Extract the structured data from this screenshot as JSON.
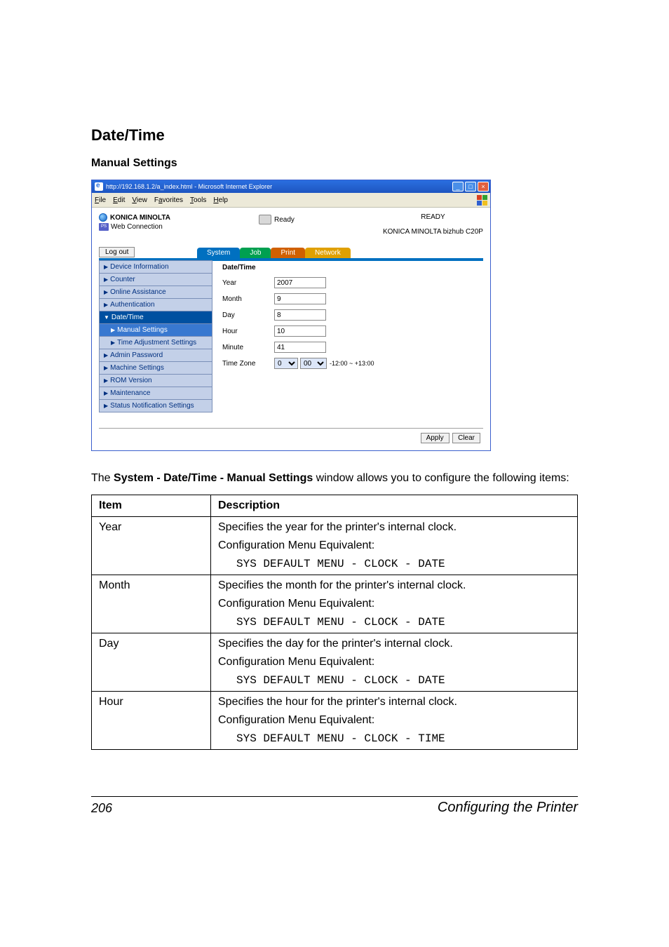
{
  "headings": {
    "section": "Date/Time",
    "sub": "Manual Settings"
  },
  "window": {
    "title": "http://192.168.1.2/a_index.html - Microsoft Internet Explorer",
    "menus": {
      "file": "File",
      "edit": "Edit",
      "view": "View",
      "favorites": "Favorites",
      "tools": "Tools",
      "help": "Help"
    },
    "logo_colors": [
      "#d84020",
      "#30a030",
      "#3060d0",
      "#f0c020"
    ],
    "brand_line1": "KONICA MINOLTA",
    "brand_line2": "Web Connection",
    "ps_badge": "PAGE SCOPE",
    "status": "Ready",
    "ready_label": "READY",
    "model": "KONICA MINOLTA bizhub C20P",
    "logout": "Log out",
    "tabs": {
      "system": "System",
      "job": "Job",
      "print": "Print",
      "network": "Network"
    },
    "menu": {
      "device_info": "Device Information",
      "counter": "Counter",
      "online_assist": "Online Assistance",
      "authentication": "Authentication",
      "date_time": "Date/Time",
      "manual": "Manual Settings",
      "time_adj": "Time Adjustment Settings",
      "admin_pw": "Admin Password",
      "machine": "Machine Settings",
      "rom": "ROM Version",
      "maint": "Maintenance",
      "status_notif": "Status Notification Settings"
    },
    "form": {
      "title": "Date/Time",
      "year_label": "Year",
      "year_val": "2007",
      "month_label": "Month",
      "month_val": "9",
      "day_label": "Day",
      "day_val": "8",
      "hour_label": "Hour",
      "hour_val": "10",
      "minute_label": "Minute",
      "minute_val": "41",
      "tz_label": "Time Zone",
      "tz_hours": "0",
      "tz_minutes": "00",
      "tz_range": "-12:00 ~ +13:00"
    },
    "buttons": {
      "apply": "Apply",
      "clear": "Clear"
    }
  },
  "body_para_pre": "The ",
  "body_para_bold": "System - Date/Time - Manual Settings",
  "body_para_post": " window allows you to configure the following items:",
  "table": {
    "headers": {
      "item": "Item",
      "desc": "Description"
    },
    "rows": [
      {
        "item": "Year",
        "line1": "Specifies the year for the printer's internal clock.",
        "equiv_label": "Configuration Menu Equivalent:",
        "equiv_code": "SYS DEFAULT MENU - CLOCK - DATE"
      },
      {
        "item": "Month",
        "line1": "Specifies the month for the printer's internal clock.",
        "equiv_label": "Configuration Menu Equivalent:",
        "equiv_code": "SYS DEFAULT MENU - CLOCK - DATE"
      },
      {
        "item": "Day",
        "line1": "Specifies the day for the printer's internal clock.",
        "equiv_label": "Configuration Menu Equivalent:",
        "equiv_code": "SYS DEFAULT MENU - CLOCK - DATE"
      },
      {
        "item": "Hour",
        "line1": "Specifies the hour for the printer's internal clock.",
        "equiv_label": "Configuration Menu Equivalent:",
        "equiv_code": "SYS DEFAULT MENU - CLOCK - TIME"
      }
    ]
  },
  "footer": {
    "page": "206",
    "text": "Configuring the Printer"
  }
}
